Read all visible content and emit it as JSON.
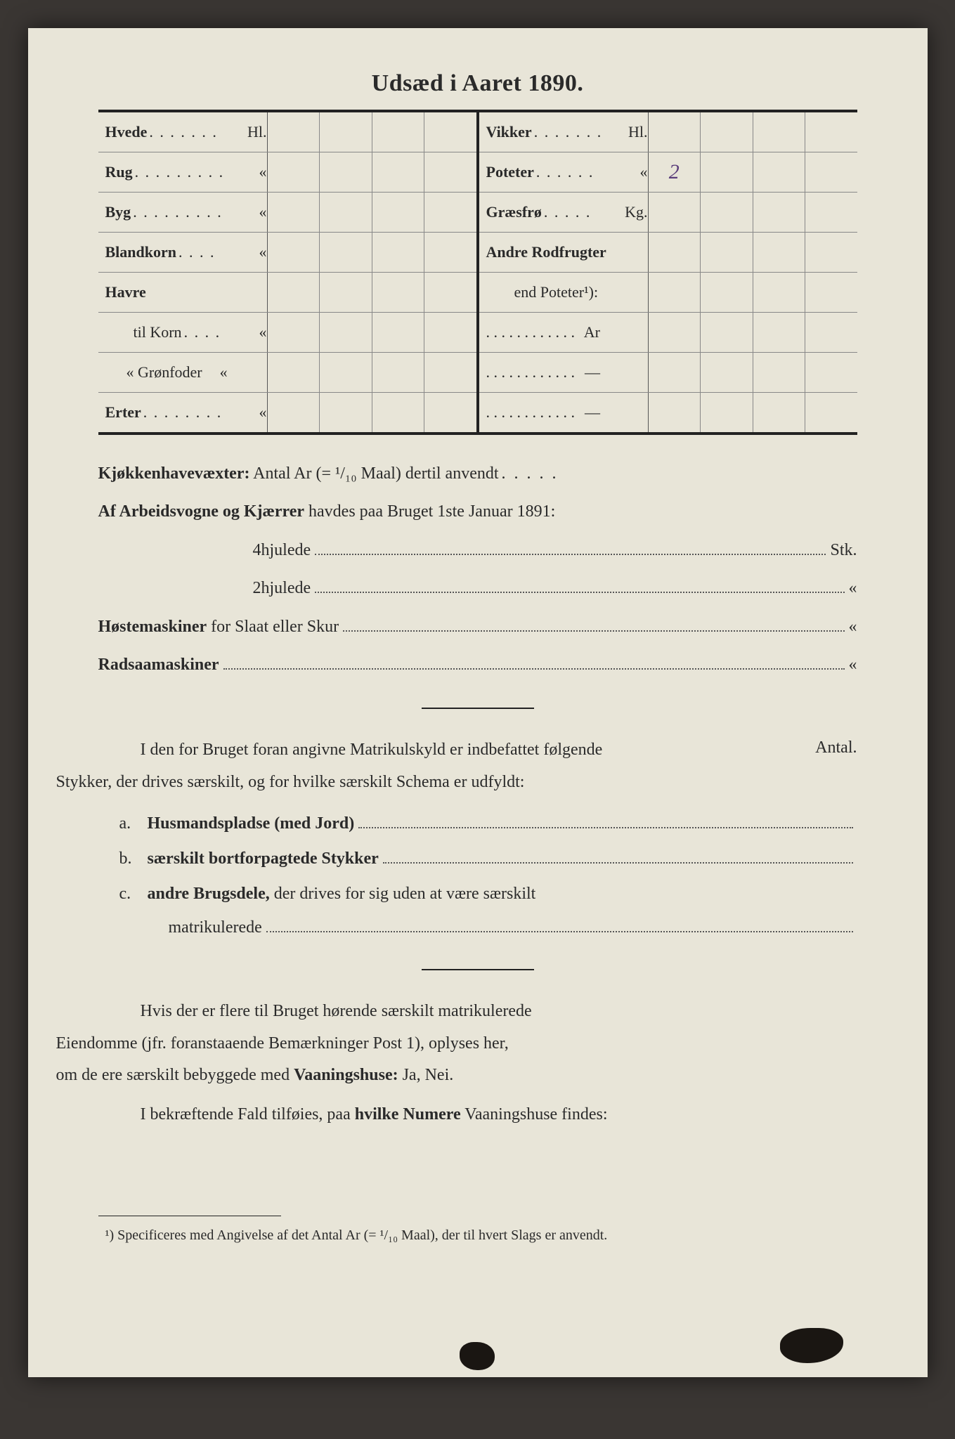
{
  "colors": {
    "page_bg": "#e8e5d8",
    "outer_bg": "#3a3633",
    "ink": "#2a2a2a",
    "handwriting": "#5a3d7a",
    "rule": "#222222",
    "grid": "#888888"
  },
  "title": "Udsæd i Aaret 1890.",
  "seed_table": {
    "left": [
      {
        "name": "Hvede",
        "dots": ". . . . . . .",
        "unit": "Hl.",
        "value": ""
      },
      {
        "name": "Rug",
        "dots": ". . . . . . . . .",
        "unit": "«",
        "value": ""
      },
      {
        "name": "Byg",
        "dots": ". . . . . . . . .",
        "unit": "«",
        "value": ""
      },
      {
        "name": "Blandkorn",
        "dots": ". . . .",
        "unit": "«",
        "value": ""
      },
      {
        "name": "Havre",
        "dots": "",
        "unit": "",
        "value": ""
      },
      {
        "name": "til Korn",
        "dots": ". . . .",
        "unit": "«",
        "value": "",
        "indent": true
      },
      {
        "name": "«  Grønfoder",
        "dots": "",
        "unit": "«",
        "value": "",
        "indent2": true
      },
      {
        "name": "Erter",
        "dots": ". . . . . . . .",
        "unit": "«",
        "value": ""
      }
    ],
    "right": [
      {
        "name": "Vikker",
        "dots": ". . . . . . .",
        "unit": "Hl.",
        "value": ""
      },
      {
        "name": "Poteter",
        "dots": ". . . . . .",
        "unit": "«",
        "value": "2"
      },
      {
        "name": "Græsfrø",
        "dots": ". . . . .",
        "unit": "Kg.",
        "value": ""
      },
      {
        "name": "Andre Rodfrugter",
        "dots": "",
        "unit": "",
        "value": ""
      },
      {
        "name": "end Poteter¹):",
        "dots": "",
        "unit": "",
        "value": "",
        "indent": true
      },
      {
        "name": ". . . . . . . . . . . .",
        "dots": "",
        "unit": "Ar",
        "value": "",
        "plain": true
      },
      {
        "name": ". . . . . . . . . . . .",
        "dots": "",
        "unit": "—",
        "value": "",
        "plain": true
      },
      {
        "name": ". . . . . . . . . . . .",
        "dots": "",
        "unit": "—",
        "value": "",
        "plain": true
      }
    ]
  },
  "section1": {
    "kj_line_lead": "Kjøkkenhavevæxter:",
    "kj_line_rest": " Antal Ar (= ¹/₁₀ Maal) dertil anvendt",
    "wagons_lead": "Af Arbeidsvogne og Kjærrer",
    "wagons_rest": " havdes paa Bruget 1ste Januar 1891:",
    "four_wheel": "4hjulede",
    "four_wheel_tail": "Stk.",
    "two_wheel": "2hjulede",
    "two_wheel_tail": "«",
    "host_lead": "Høstemaskiner",
    "host_rest": " for Slaat eller Skur",
    "host_tail": "«",
    "rad_lead": "Radsaamaskiner",
    "rad_tail": "«"
  },
  "section2": {
    "intro_1": "I den for Bruget foran angivne Matrikulskyld er indbefattet følgende",
    "intro_2": "Stykker, der drives særskilt, og for hvilke særskilt Schema er udfyldt:",
    "antal": "Antal.",
    "a_marker": "a.",
    "a_text": "Husmandspladse (med Jord)",
    "b_marker": "b.",
    "b_text": "særskilt bortforpagtede Stykker",
    "c_marker": "c.",
    "c_text_bold": "andre Brugsdele,",
    "c_text_rest": " der drives for sig uden at være særskilt",
    "c_cont": "matrikulerede"
  },
  "section3": {
    "p1_a": "Hvis der er flere til Bruget hørende særskilt matrikulerede",
    "p1_b": "Eiendomme (jfr. foranstaaende Bemærkninger Post 1), oplyses her,",
    "p1_c": "om de ere særskilt bebyggede med ",
    "p1_bold": "Vaaningshuse:",
    "p1_tail": " Ja, Nei.",
    "p2_a": "I bekræftende Fald tilføies, paa ",
    "p2_bold": "hvilke Numere",
    "p2_tail": " Vaaningshuse findes:"
  },
  "footnote": {
    "marker": "¹)",
    "text": " Specificeres med Angivelse af det Antal Ar (= ¹/₁₀ Maal), der til hvert Slags er anvendt."
  }
}
